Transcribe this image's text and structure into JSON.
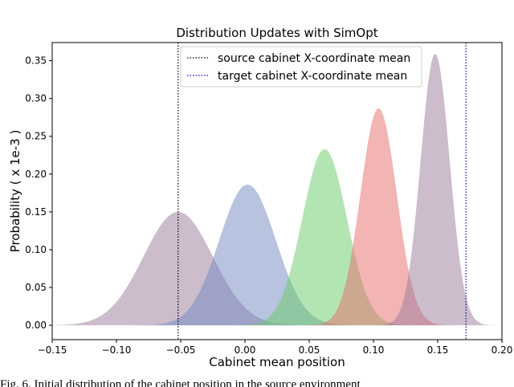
{
  "chart_data": {
    "type": "density",
    "title": "Distribution Updates with SimOpt",
    "xlabel": "Cabinet mean position",
    "ylabel": "Probability ( x 1e-3 )",
    "caption": "Fig. 6.   Initial distribution of the cabinet position in the source environment",
    "xlim": [
      -0.15,
      0.2
    ],
    "ylim": [
      -0.019,
      0.374
    ],
    "xticks": [
      {
        "value": -0.15,
        "label": "−0.15"
      },
      {
        "value": -0.1,
        "label": "−0.10"
      },
      {
        "value": -0.05,
        "label": "−0.05"
      },
      {
        "value": 0,
        "label": "0.00"
      },
      {
        "value": 0.05,
        "label": "0.05"
      },
      {
        "value": 0.1,
        "label": "0.10"
      },
      {
        "value": 0.15,
        "label": "0.15"
      },
      {
        "value": 0.2,
        "label": "0.20"
      }
    ],
    "yticks": [
      {
        "value": 0,
        "label": "0.00"
      },
      {
        "value": 0.05,
        "label": "0.05"
      },
      {
        "value": 0.1,
        "label": "0.10"
      },
      {
        "value": 0.15,
        "label": "0.15"
      },
      {
        "value": 0.2,
        "label": "0.20"
      },
      {
        "value": 0.25,
        "label": "0.25"
      },
      {
        "value": 0.3,
        "label": "0.30"
      },
      {
        "value": 0.35,
        "label": "0.35"
      }
    ],
    "series": [
      {
        "color": "#9a7a9a",
        "mean": -0.052,
        "sd": 0.027,
        "peak": 0.15
      },
      {
        "color": "#6f87c0",
        "mean": 0.002,
        "sd": 0.022,
        "peak": 0.186
      },
      {
        "color": "#66cc66",
        "mean": 0.062,
        "sd": 0.0174,
        "peak": 0.233
      },
      {
        "color": "#e86a6a",
        "mean": 0.104,
        "sd": 0.0141,
        "peak": 0.287
      },
      {
        "color": "#9a7a9a",
        "mean": 0.148,
        "sd": 0.0113,
        "peak": 0.359
      }
    ],
    "vlines": [
      {
        "name": "source cabinet X-coordinate mean",
        "x": -0.052,
        "color": "#000000"
      },
      {
        "name": "target cabinet X-coordinate mean",
        "x": 0.172,
        "color": "#0000cc"
      }
    ],
    "legend": "upper center"
  }
}
